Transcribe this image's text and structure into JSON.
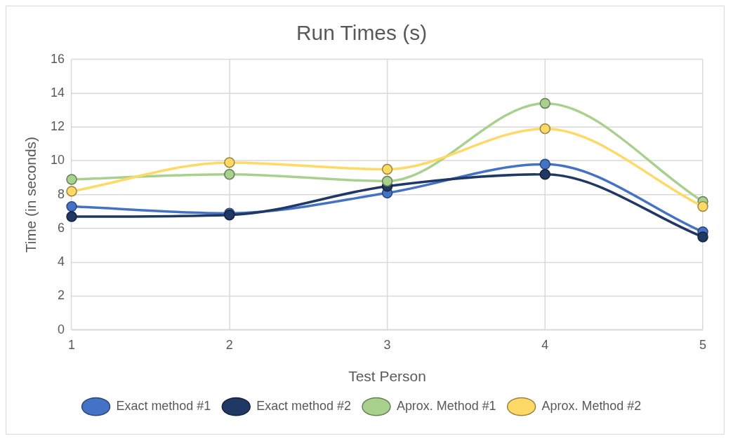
{
  "chart_data": {
    "type": "line",
    "title": "Run Times (s)",
    "xlabel": "Test Person",
    "ylabel": "Time (in seconds)",
    "categories": [
      "1",
      "2",
      "3",
      "4",
      "5"
    ],
    "series": [
      {
        "name": "Exact method #1",
        "color": "#4472c4",
        "values": [
          7.3,
          6.9,
          8.1,
          9.8,
          5.8
        ]
      },
      {
        "name": "Exact method #2",
        "color": "#203864",
        "values": [
          6.7,
          6.8,
          8.5,
          9.2,
          5.5
        ]
      },
      {
        "name": "Aprox. Method #1",
        "color": "#a9d18e",
        "values": [
          8.9,
          9.2,
          8.8,
          13.4,
          7.6
        ]
      },
      {
        "name": "Aprox. Method #2",
        "color": "#ffd966",
        "values": [
          8.2,
          9.9,
          9.5,
          11.9,
          7.3
        ]
      }
    ],
    "ylim": [
      0,
      16
    ],
    "yticks": [
      0,
      2,
      4,
      6,
      8,
      10,
      12,
      14,
      16
    ],
    "grid": true,
    "legend": "bottom",
    "marker": "circle",
    "line_style": "solid"
  }
}
